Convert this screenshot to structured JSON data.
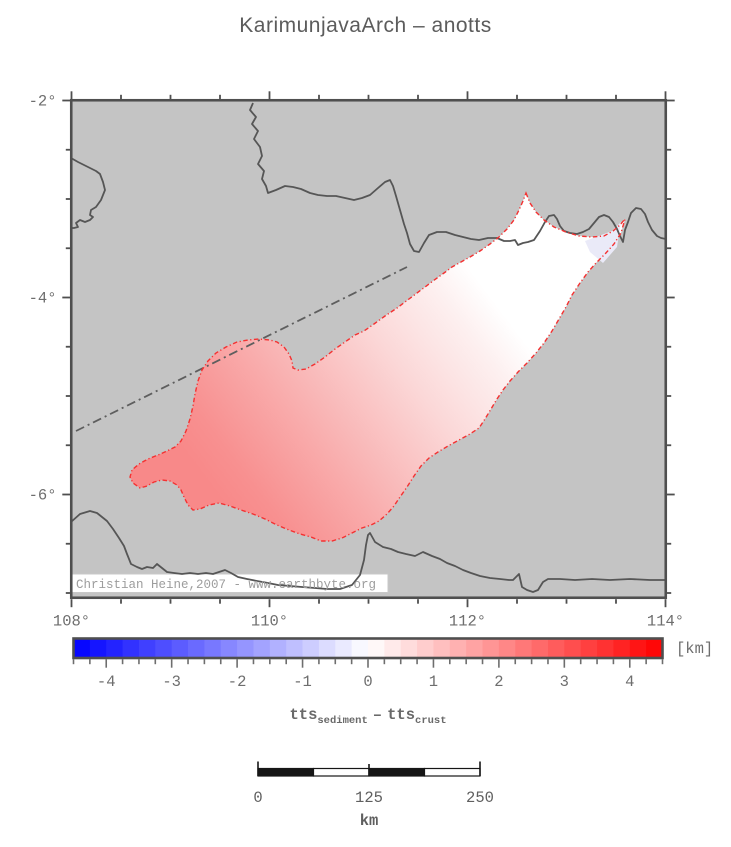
{
  "title": "KarimunjavaArch – anotts",
  "map": {
    "attribution": "Christian Heine,2007 - www.earthbyte.org",
    "x_axis": {
      "major_ticks": [
        {
          "value": 108,
          "label": "108°"
        },
        {
          "value": 110,
          "label": "110°"
        },
        {
          "value": 112,
          "label": "112°"
        },
        {
          "value": 114,
          "label": "114°"
        }
      ],
      "minor_interval_deg": 0.5,
      "range_deg": [
        108,
        114
      ]
    },
    "y_axis": {
      "major_ticks": [
        {
          "value": -2,
          "label": "-2°"
        },
        {
          "value": -4,
          "label": "-4°"
        },
        {
          "value": -6,
          "label": "-6°"
        }
      ],
      "minor_interval_deg": 0.5,
      "range_deg": [
        -7.05,
        -2
      ]
    },
    "colors": {
      "land": "#c4c4c4",
      "coastline": "#565656",
      "frame": "#4f4f4f",
      "region_outline": "#f43131",
      "region_fill_max": "#f88989",
      "region_fill_min": "#eaeaf8",
      "fault_line": "#5e5e5e"
    }
  },
  "colorbar": {
    "min": -4.5,
    "max": 4.5,
    "cell_step": 0.25,
    "tick_minor_step": 0.25,
    "major_ticks": [
      {
        "value": -4,
        "label": "-4"
      },
      {
        "value": -3,
        "label": "-3"
      },
      {
        "value": -2,
        "label": "-2"
      },
      {
        "value": -1,
        "label": "-1"
      },
      {
        "value": 0,
        "label": "0"
      },
      {
        "value": 1,
        "label": "1"
      },
      {
        "value": 2,
        "label": "2"
      },
      {
        "value": 3,
        "label": "3"
      },
      {
        "value": 4,
        "label": "4"
      }
    ],
    "unit_label": "[km]",
    "negative_end_color": "#0000ff",
    "zero_color": "#ffffff",
    "positive_end_color": "#ff0000"
  },
  "difference_label": {
    "term1": "tts",
    "term1_sub": "sediment",
    "operator": "–",
    "term2": "tts",
    "term2_sub": "crust"
  },
  "scalebar": {
    "tick_labels": [
      "0",
      "125",
      "250"
    ],
    "unit": "km",
    "segments": 4,
    "length_km": 250
  }
}
